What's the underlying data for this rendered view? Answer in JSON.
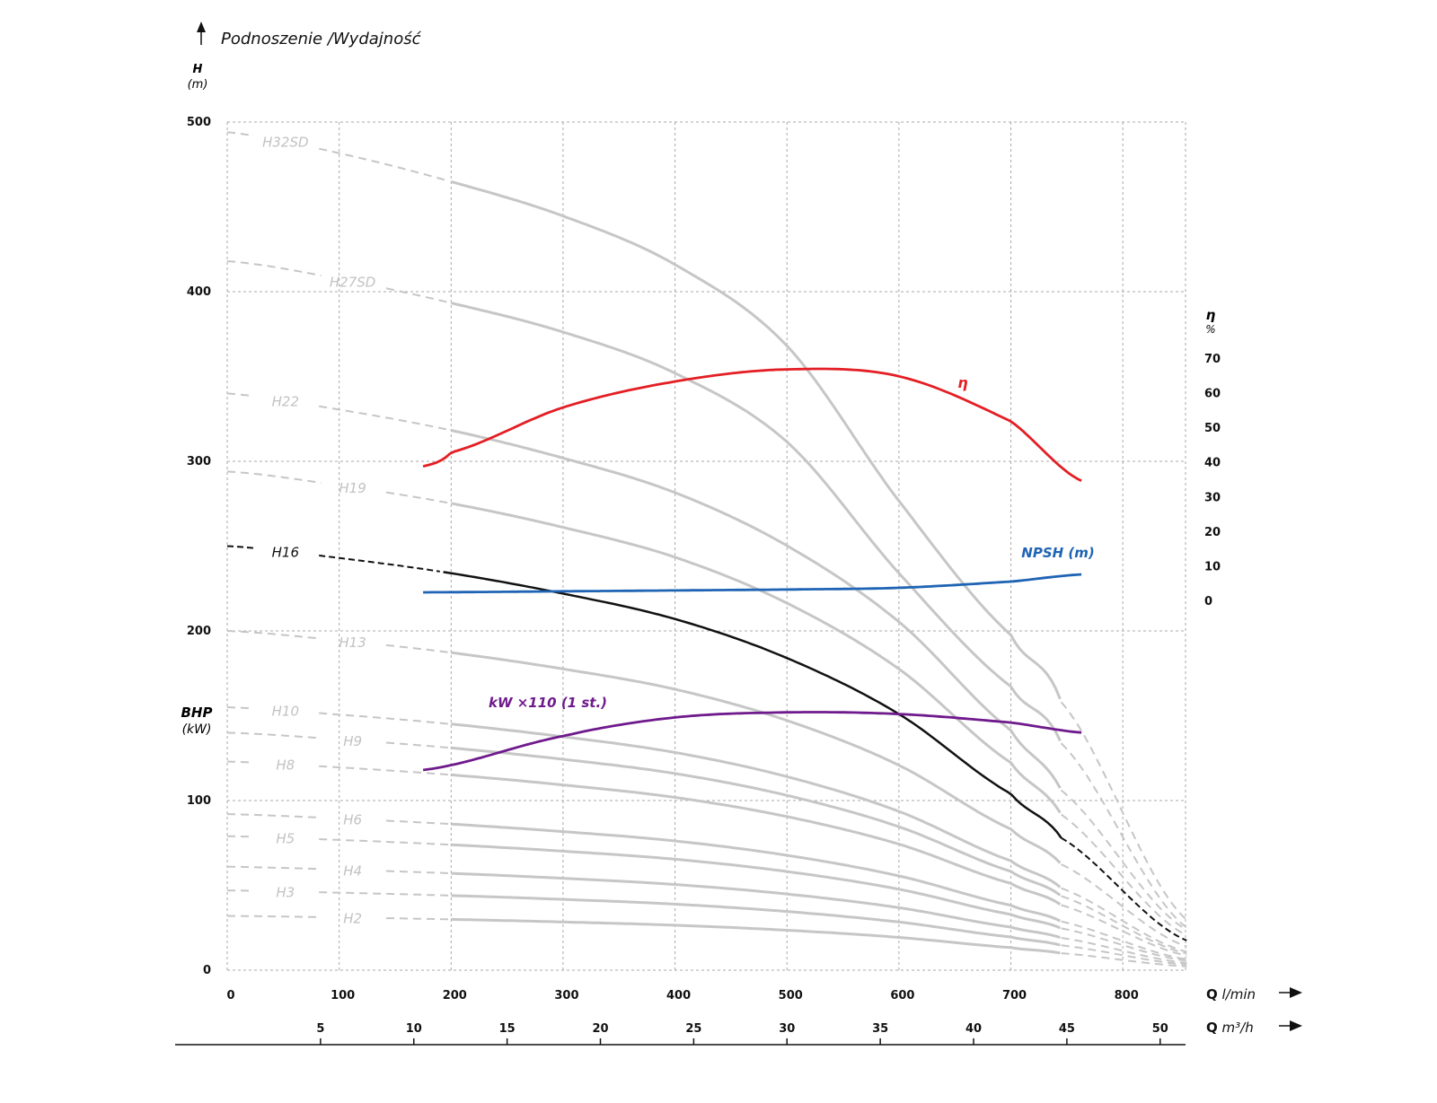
{
  "chart_data": {
    "type": "line",
    "title": "Podnoszenie /Wydajność",
    "ylabel": "H",
    "ylabel_unit": "(m)",
    "ylabel2": "BHP",
    "ylabel2_unit": "(kW)",
    "ylim": [
      0,
      500
    ],
    "yticks": [
      "0",
      "100",
      "200",
      "300",
      "400",
      "500"
    ],
    "right_axis": {
      "label": "η",
      "unit": "%",
      "ylim": [
        0,
        70
      ],
      "ticks": [
        "0",
        "10",
        "20",
        "30",
        "40",
        "50",
        "60",
        "70"
      ]
    },
    "xlabel": "Q",
    "xunit": "l/min",
    "xlim": [
      0,
      857
    ],
    "xticks": [
      "0",
      "100",
      "200",
      "300",
      "400",
      "500",
      "600",
      "700",
      "800"
    ],
    "x2label": "Q",
    "x2unit": "m³/h",
    "x2ticks": [
      "5",
      "10",
      "15",
      "20",
      "25",
      "30",
      "35",
      "40",
      "45",
      "50"
    ],
    "grid": true,
    "shape_q": [
      0,
      100,
      200,
      300,
      400,
      500,
      600,
      700,
      745,
      857
    ],
    "shape_std": [
      1,
      0.972,
      0.936,
      0.888,
      0.828,
      0.736,
      0.604,
      0.416,
      0.312,
      0.07
    ],
    "shape_sd": [
      1,
      0.975,
      0.941,
      0.9,
      0.842,
      0.745,
      0.56,
      0.4,
      0.32,
      0.06
    ],
    "head_curves": [
      {
        "name": "H32SD",
        "shutoff": 494,
        "shape": "sd"
      },
      {
        "name": "H27SD",
        "shutoff": 418,
        "shape": "sd"
      },
      {
        "name": "H22",
        "shutoff": 340,
        "shape": "std"
      },
      {
        "name": "H19",
        "shutoff": 294,
        "shape": "std"
      },
      {
        "name": "H16",
        "shutoff": 250,
        "shape": "std",
        "highlight": true
      },
      {
        "name": "H13",
        "shutoff": 200,
        "shape": "std"
      },
      {
        "name": "H10",
        "shutoff": 155,
        "shape": "std"
      },
      {
        "name": "H9",
        "shutoff": 140,
        "shape": "std"
      },
      {
        "name": "H8",
        "shutoff": 123,
        "shape": "std"
      },
      {
        "name": "H6",
        "shutoff": 92,
        "shape": "std"
      },
      {
        "name": "H5",
        "shutoff": 79,
        "shape": "std"
      },
      {
        "name": "H4",
        "shutoff": 61,
        "shape": "std"
      },
      {
        "name": "H3",
        "shutoff": 47,
        "shape": "std"
      },
      {
        "name": "H2",
        "shutoff": 32,
        "shape": "std"
      }
    ],
    "solid_range_q": [
      200,
      745
    ],
    "efficiency": {
      "label": "η",
      "axis": "right",
      "color": "#e31e24",
      "q": [
        175,
        200,
        300,
        400,
        500,
        600,
        700,
        765
      ],
      "values": [
        39,
        43,
        56,
        63.5,
        67,
        65,
        52,
        34.5
      ]
    },
    "npsh": {
      "label": "NPSH (m)",
      "axis": "right",
      "color": "#1f64b4",
      "q": [
        175,
        300,
        500,
        600,
        700,
        765
      ],
      "values": [
        2.6,
        2.9,
        3.4,
        3.9,
        5.7,
        7.8
      ]
    },
    "power": {
      "label": "kW ×110 (1 st.)",
      "axis": "left",
      "color": "#6f1a8c",
      "q": [
        175,
        300,
        400,
        500,
        600,
        700,
        765
      ],
      "values": [
        118,
        138,
        149,
        152,
        151,
        146,
        140
      ]
    }
  }
}
